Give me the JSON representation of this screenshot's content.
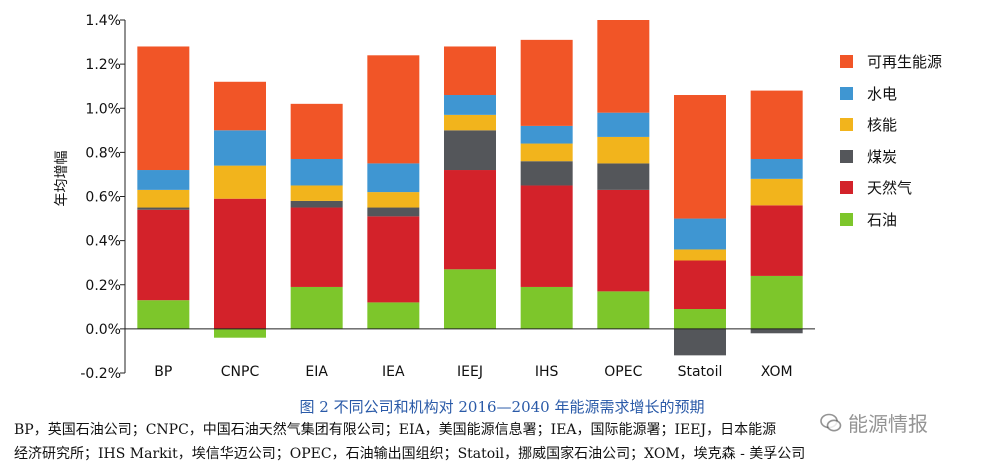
{
  "chart_data": {
    "type": "bar",
    "stacked": true,
    "ylabel": "年均增幅",
    "ylim": [
      -0.2,
      1.4
    ],
    "yticks": [
      -0.2,
      0.0,
      0.2,
      0.4,
      0.6,
      0.8,
      1.0,
      1.2,
      1.4
    ],
    "ytick_labels": [
      "-0.2%",
      "0.0%",
      "0.2%",
      "0.4%",
      "0.6%",
      "0.8%",
      "1.0%",
      "1.2%",
      "1.4%"
    ],
    "categories": [
      "BP",
      "CNPC",
      "EIA",
      "IEA",
      "IEEJ",
      "IHS",
      "OPEC",
      "Statoil",
      "XOM"
    ],
    "series": [
      {
        "name": "石油",
        "color": "#7dc62b",
        "values": [
          0.13,
          -0.04,
          0.19,
          0.12,
          0.27,
          0.19,
          0.17,
          0.09,
          0.24
        ]
      },
      {
        "name": "天然气",
        "color": "#d3222a",
        "values": [
          0.41,
          0.59,
          0.36,
          0.39,
          0.45,
          0.46,
          0.46,
          0.22,
          0.32
        ]
      },
      {
        "name": "煤炭",
        "color": "#54565a",
        "values": [
          0.01,
          0.0,
          0.03,
          0.04,
          0.18,
          0.11,
          0.12,
          -0.12,
          -0.02
        ]
      },
      {
        "name": "核能",
        "color": "#f2b41c",
        "values": [
          0.08,
          0.15,
          0.07,
          0.07,
          0.07,
          0.08,
          0.12,
          0.05,
          0.12
        ]
      },
      {
        "name": "水电",
        "color": "#3f96d2",
        "values": [
          0.09,
          0.16,
          0.12,
          0.13,
          0.09,
          0.08,
          0.11,
          0.14,
          0.09
        ]
      },
      {
        "name": "可再生能源",
        "color": "#f15527",
        "values": [
          0.56,
          0.22,
          0.25,
          0.49,
          0.22,
          0.39,
          0.42,
          0.56,
          0.31
        ]
      }
    ],
    "legend_order": [
      "可再生能源",
      "水电",
      "核能",
      "煤炭",
      "天然气",
      "石油"
    ],
    "legend_position": "right",
    "grid": false
  },
  "caption": "图 2  不同公司和机构对 2016—2040 年能源需求增长的预期",
  "notes": [
    "BP，英国石油公司；CNPC，中国石油天然气集团有限公司；EIA，美国能源信息署；IEA，国际能源署；IEEJ，日本能源",
    "经济研究所；IHS Markit，埃信华迈公司；OPEC，石油输出国组织；Statoil，挪威国家石油公司；XOM，埃克森 - 美孚公司"
  ],
  "watermark": "能源情报"
}
